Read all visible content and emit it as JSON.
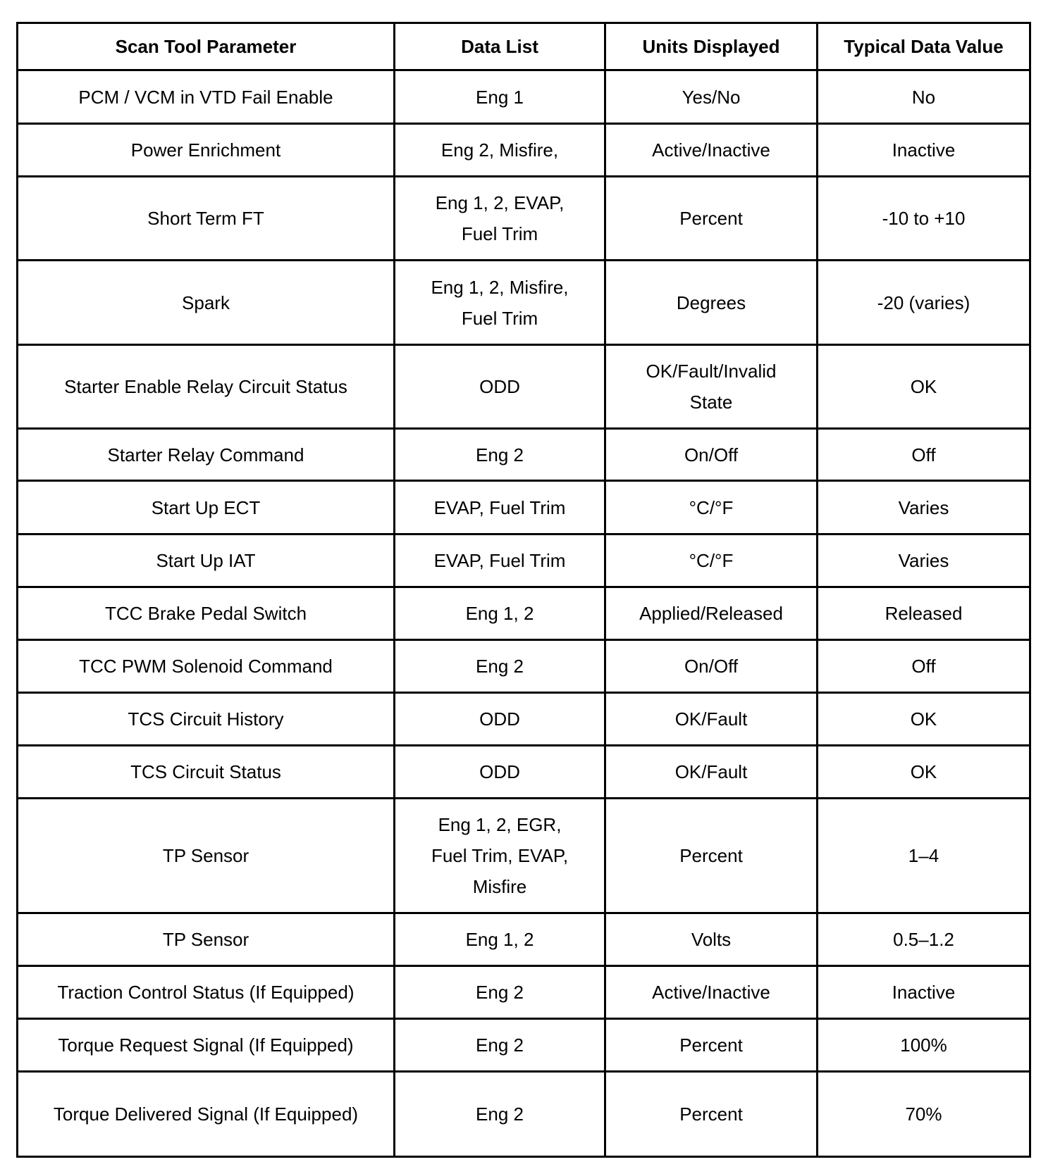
{
  "headers": [
    "Scan Tool Parameter",
    "Data List",
    "Units Displayed",
    "Typical Data Value"
  ],
  "rows": [
    [
      "PCM / VCM in VTD Fail Enable",
      "Eng 1",
      "Yes/No",
      "No"
    ],
    [
      "Power Enrichment",
      "Eng 2, Misfire,",
      "Active/Inactive",
      "Inactive"
    ],
    [
      "Short Term FT",
      "Eng 1, 2, EVAP, Fuel Trim",
      "Percent",
      "-10 to +10"
    ],
    [
      "Spark",
      "Eng 1, 2, Misfire, Fuel Trim",
      "Degrees",
      "-20 (varies)"
    ],
    [
      "Starter Enable Relay Circuit Status",
      "ODD",
      "OK/Fault/Invalid State",
      "OK"
    ],
    [
      "Starter Relay Command",
      "Eng 2",
      "On/Off",
      "Off"
    ],
    [
      "Start Up ECT",
      "EVAP, Fuel Trim",
      "°C/°F",
      "Varies"
    ],
    [
      "Start Up IAT",
      "EVAP, Fuel Trim",
      "°C/°F",
      "Varies"
    ],
    [
      "TCC Brake Pedal Switch",
      "Eng 1, 2",
      "Applied/Released",
      "Released"
    ],
    [
      "TCC PWM Solenoid Command",
      "Eng 2",
      "On/Off",
      "Off"
    ],
    [
      "TCS Circuit History",
      "ODD",
      "OK/Fault",
      "OK"
    ],
    [
      "TCS Circuit Status",
      "ODD",
      "OK/Fault",
      "OK"
    ],
    [
      "TP Sensor",
      "Eng 1, 2, EGR, Fuel Trim, EVAP, Misfire",
      "Percent",
      "1–4"
    ],
    [
      "TP Sensor",
      "Eng 1, 2",
      "Volts",
      "0.5–1.2"
    ],
    [
      "Traction Control Status (If Equipped)",
      "Eng 2",
      "Active/Inactive",
      "Inactive"
    ],
    [
      "Torque Request Signal (If Equipped)",
      "Eng 2",
      "Percent",
      "100%"
    ],
    [
      "Torque Delivered Signal (If Equipped)",
      "Eng 2",
      "Percent",
      "70%"
    ]
  ]
}
